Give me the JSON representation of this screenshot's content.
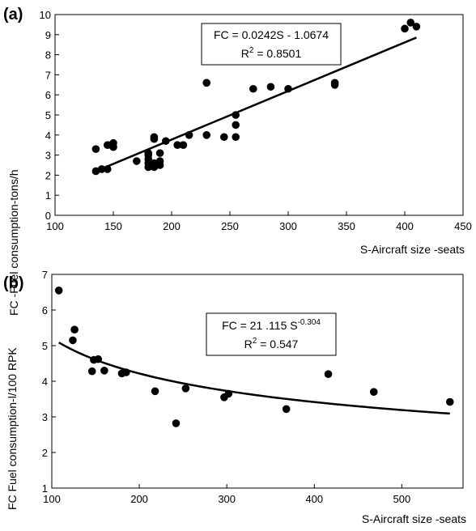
{
  "chart_data": [
    {
      "type": "scatter",
      "panel_label": "(a)",
      "xlabel": "S-Aircraft size -seats",
      "ylabel": "FC -Fuel consumption-tons/h",
      "xlim": [
        100,
        450
      ],
      "ylim": [
        0,
        10
      ],
      "x_ticks": [
        "100",
        "150",
        "200",
        "250",
        "300",
        "350",
        "400",
        "450"
      ],
      "y_ticks": [
        "0",
        "1",
        "2",
        "3",
        "4",
        "5",
        "6",
        "7",
        "8",
        "9",
        "10"
      ],
      "grid": false,
      "annotation": {
        "line1": "FC = 0.0242S - 1.0674",
        "line2_prefix": "R",
        "line2_sup": "2",
        "line2_suffix": " = 0.8501"
      },
      "fit": {
        "kind": "linear",
        "slope": 0.0242,
        "intercept": -1.0674,
        "x_range": [
          135,
          410
        ]
      },
      "points": [
        [
          135,
          3.3
        ],
        [
          135,
          2.2
        ],
        [
          140,
          2.3
        ],
        [
          145,
          2.3
        ],
        [
          145,
          3.5
        ],
        [
          148,
          3.5
        ],
        [
          150,
          3.4
        ],
        [
          150,
          3.6
        ],
        [
          170,
          2.7
        ],
        [
          180,
          2.4
        ],
        [
          180,
          2.6
        ],
        [
          180,
          2.8
        ],
        [
          180,
          3.0
        ],
        [
          180,
          3.1
        ],
        [
          183,
          2.5
        ],
        [
          185,
          2.4
        ],
        [
          185,
          2.6
        ],
        [
          185,
          3.8
        ],
        [
          185,
          3.9
        ],
        [
          190,
          2.5
        ],
        [
          190,
          2.7
        ],
        [
          190,
          3.1
        ],
        [
          195,
          3.7
        ],
        [
          205,
          3.5
        ],
        [
          210,
          3.5
        ],
        [
          215,
          4.0
        ],
        [
          230,
          4.0
        ],
        [
          230,
          6.6
        ],
        [
          245,
          3.9
        ],
        [
          255,
          3.9
        ],
        [
          255,
          4.5
        ],
        [
          255,
          5.0
        ],
        [
          270,
          6.3
        ],
        [
          285,
          6.4
        ],
        [
          300,
          6.3
        ],
        [
          340,
          6.5
        ],
        [
          340,
          6.6
        ],
        [
          400,
          9.3
        ],
        [
          405,
          9.6
        ],
        [
          410,
          9.4
        ]
      ]
    },
    {
      "type": "scatter",
      "panel_label": "(b)",
      "xlabel": "S-Aircraft size -seats",
      "ylabel": "FC Fuel consumption-l/100 RPK",
      "xlim": [
        100,
        570
      ],
      "ylim": [
        1,
        7
      ],
      "x_ticks": [
        "100",
        "200",
        "300",
        "400",
        "500"
      ],
      "x_tick_values": [
        100,
        200,
        300,
        400,
        500
      ],
      "y_ticks": [
        "1",
        "2",
        "3",
        "4",
        "5",
        "6",
        "7"
      ],
      "grid": false,
      "annotation": {
        "line1_prefix": "FC = 21 .115 S",
        "line1_sup": "-0.304",
        "line2_prefix": "R",
        "line2_sup": "2",
        "line2_suffix": " = 0.547"
      },
      "fit": {
        "kind": "power",
        "coefficient": 21.115,
        "exponent": -0.304,
        "x_range": [
          108,
          555
        ]
      },
      "points": [
        [
          108,
          6.55
        ],
        [
          124,
          5.15
        ],
        [
          126,
          5.45
        ],
        [
          146,
          4.28
        ],
        [
          148,
          4.6
        ],
        [
          153,
          4.62
        ],
        [
          160,
          4.3
        ],
        [
          180,
          4.22
        ],
        [
          185,
          4.25
        ],
        [
          218,
          3.72
        ],
        [
          242,
          2.82
        ],
        [
          253,
          3.8
        ],
        [
          297,
          3.55
        ],
        [
          302,
          3.65
        ],
        [
          368,
          3.22
        ],
        [
          416,
          4.2
        ],
        [
          468,
          3.7
        ],
        [
          555,
          3.42
        ]
      ]
    }
  ]
}
